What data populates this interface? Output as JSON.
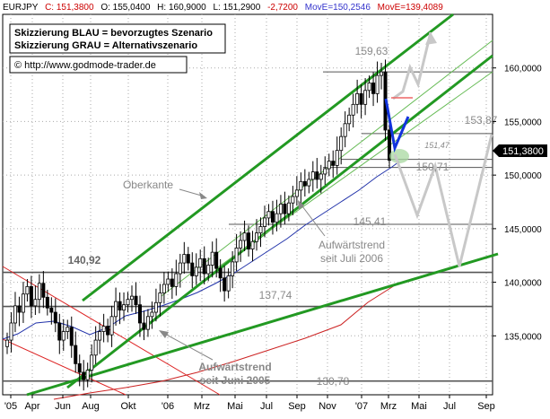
{
  "header": {
    "symbol": "EURJPY",
    "close": "C: 151,3800",
    "open": "O: 155,0400",
    "high": "H: 160,9000",
    "low": "L: 151,2900",
    "change": "-2,7200",
    "ma_blue": "MovE=150,2546",
    "ma_red": "MovE=139,4089"
  },
  "info_box": {
    "line1": "Skizzierung BLAU = bevorzugtes Szenario",
    "line2": "Skizzierung GRAU = Alternativszenario"
  },
  "copyright": "© http://www.godmode-trader.de",
  "price_tag": "151,3800",
  "level_labels": [
    "159,63",
    "153,87",
    "151,47",
    "150,71",
    "145,41",
    "140,92",
    "137,74",
    "130,78"
  ],
  "annotations": {
    "oberkante": "Oberkante",
    "trend_2006_line1": "Aufwärtstrend",
    "trend_2006_line2": "seit Juli 2006",
    "trend_2005_line1": "Aufwärtstrend",
    "trend_2005_line2": "seit Juni 2005"
  },
  "colors": {
    "header_red": "#cc0000",
    "header_blue": "#3333cc",
    "trend_green": "#229922",
    "thin_green": "#66bb55",
    "ma_blue": "#2233aa",
    "ma_red": "#cc2222",
    "downtrend_red": "#dd2222",
    "scenario_blue": "#1133dd",
    "scenario_gray": "#c8c8c8",
    "level_gray": "#555555",
    "candle": "#000000",
    "price_tag_bg": "#000000"
  },
  "chart_data": {
    "type": "candlestick",
    "title": "EURJPY",
    "x_tick_labels": [
      "'05",
      "Apr",
      "Jun",
      "Aug",
      "Okt",
      "'06",
      "Mrz",
      "Mai",
      "Jul",
      "Sep",
      "Nov",
      "'07",
      "Mrz",
      "Mai",
      "Jul",
      "Sep"
    ],
    "y_tick_labels": [
      "135,0000",
      "140,0000",
      "145,0000",
      "150,0000",
      "155,0000",
      "160,0000"
    ],
    "ylim": [
      129.5,
      165
    ],
    "grid": true,
    "horizontal_levels": [
      159.63,
      153.87,
      151.47,
      150.71,
      145.41,
      140.92,
      137.74,
      130.78
    ],
    "moving_averages": [
      {
        "name": "MovE=150,2546",
        "last": 150.2546
      },
      {
        "name": "MovE=139,4089",
        "last": 139.4089
      }
    ],
    "last_close": 151.38,
    "weekly_closes": [
      134.6,
      136.2,
      137.8,
      137.2,
      138.9,
      139.6,
      137.8,
      138.4,
      139.9,
      138.6,
      137.6,
      137.2,
      136.2,
      134.6,
      135.4,
      135.8,
      134.1,
      132.4,
      131.6,
      130.9,
      131.8,
      133.2,
      134.6,
      135.4,
      135.9,
      135.1,
      136.8,
      138.2,
      137.4,
      137.9,
      138.4,
      138.7,
      137.9,
      136.2,
      135.6,
      136.8,
      137.2,
      138.1,
      139.0,
      139.8,
      140.3,
      139.6,
      140.8,
      141.8,
      142.6,
      141.8,
      140.6,
      141.4,
      142.2,
      140.8,
      141.6,
      142.8,
      141.3,
      140.4,
      139.2,
      140.6,
      141.9,
      143.2,
      143.9,
      144.6,
      143.1,
      143.8,
      144.6,
      145.2,
      146.0,
      146.6,
      145.6,
      146.4,
      147.3,
      146.4,
      147.4,
      148.0,
      148.6,
      149.4,
      149.0,
      149.6,
      150.3,
      149.6,
      150.1,
      150.6,
      151.3,
      150.9,
      152.3,
      153.6,
      154.8,
      155.6,
      156.6,
      157.6,
      156.6,
      157.9,
      158.6,
      157.6,
      159.3,
      159.63,
      154.2,
      151.38
    ]
  }
}
